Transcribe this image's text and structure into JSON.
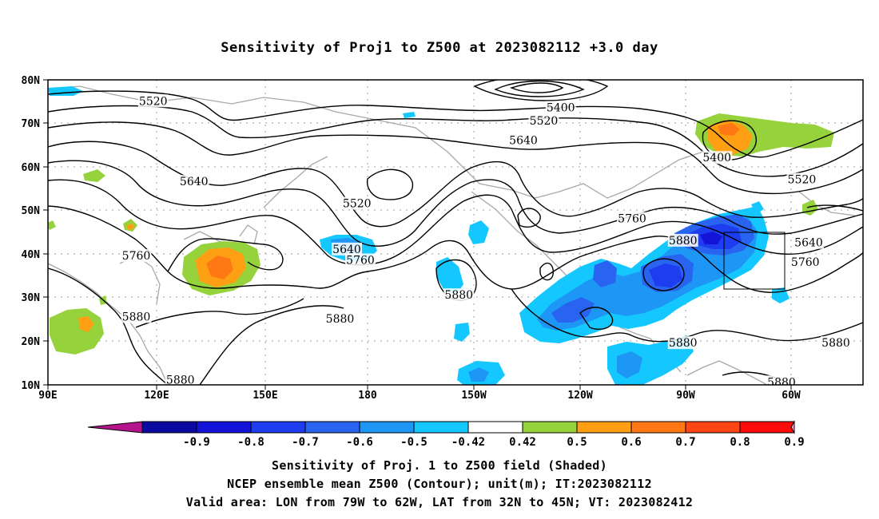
{
  "title": "Sensitivity of Proj1 to Z500 at 2023082112 +3.0 day",
  "axes": {
    "lat_labels": [
      "80N",
      "70N",
      "60N",
      "50N",
      "40N",
      "30N",
      "20N",
      "10N"
    ],
    "lon_labels": [
      "90E",
      "120E",
      "150E",
      "180",
      "150W",
      "120W",
      "90W",
      "60W"
    ]
  },
  "contour_labels": [
    {
      "text": "5520",
      "lon": 121,
      "lat": 75
    },
    {
      "text": "5400",
      "lon": 241,
      "lat": 73.5
    },
    {
      "text": "5520",
      "lon": 236,
      "lat": 70.5
    },
    {
      "text": "5640",
      "lon": 230,
      "lat": 66
    },
    {
      "text": "5400",
      "lon": 287,
      "lat": 62
    },
    {
      "text": "5520",
      "lon": 312,
      "lat": 57
    },
    {
      "text": "5640",
      "lon": 133,
      "lat": 56.5
    },
    {
      "text": "5520",
      "lon": 181,
      "lat": 51.5
    },
    {
      "text": "5760",
      "lon": 262,
      "lat": 48
    },
    {
      "text": "5880",
      "lon": 277,
      "lat": 43
    },
    {
      "text": "5640",
      "lon": 314,
      "lat": 42.5
    },
    {
      "text": "5640",
      "lon": 178,
      "lat": 41
    },
    {
      "text": "5760",
      "lon": 116,
      "lat": 39.5
    },
    {
      "text": "5760",
      "lon": 182,
      "lat": 38.5
    },
    {
      "text": "5760",
      "lon": 313,
      "lat": 38
    },
    {
      "text": "5880",
      "lon": 211,
      "lat": 30.5
    },
    {
      "text": "5880",
      "lon": 116,
      "lat": 25.5
    },
    {
      "text": "5880",
      "lon": 176,
      "lat": 25
    },
    {
      "text": "5880",
      "lon": 277,
      "lat": 19.5
    },
    {
      "text": "5880",
      "lon": 322,
      "lat": 19.5
    },
    {
      "text": "5880",
      "lon": 129,
      "lat": 11
    },
    {
      "text": "5880",
      "lon": 306,
      "lat": 10.5
    }
  ],
  "colorbar": {
    "labels": [
      "-0.9",
      "-0.8",
      "-0.7",
      "-0.6",
      "-0.5",
      "-0.42",
      "0.42",
      "0.5",
      "0.6",
      "0.7",
      "0.8",
      "0.9"
    ],
    "colors": [
      "#0a0aa0",
      "#1414d8",
      "#1e3cf0",
      "#2864f0",
      "#1e96f5",
      "#14c8ff",
      "#ffffff",
      "#96d23c",
      "#ffa014",
      "#ff7814",
      "#ff4614",
      "#ff0a0a"
    ],
    "left_triangle_color": "#b4148c",
    "right_triangle_color": "#ff9ec8"
  },
  "captions": [
    "Sensitivity of Proj. 1 to Z500 field (Shaded)",
    "NCEP ensemble mean Z500 (Contour); unit(m); IT:2023082112",
    "Valid area: LON from 79W to 62W, LAT from 32N to 45N; VT: 2023082412"
  ]
}
